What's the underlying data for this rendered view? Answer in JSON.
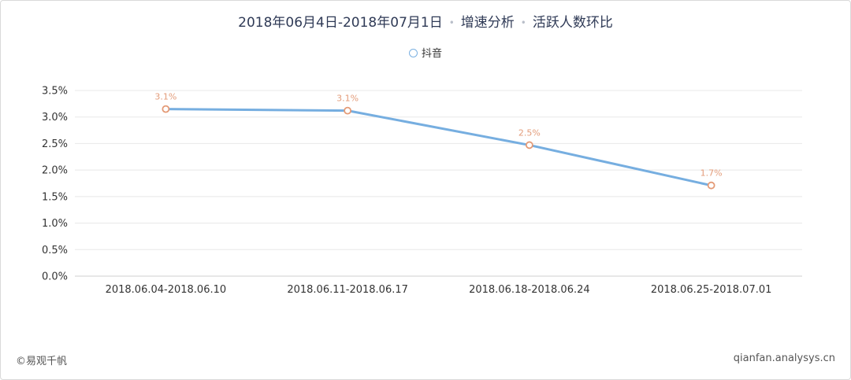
{
  "title": {
    "part1": "2018年06月4日-2018年07月1日",
    "sep": "•",
    "part2": "增速分析",
    "part3": "活跃人数环比"
  },
  "footer": {
    "left": "©易观千帆",
    "right": "qianfan.analysys.cn"
  },
  "colors": {
    "line": "#76aee0",
    "marker": "#e49a76",
    "grid": "#e8e8e8"
  },
  "chart_data": {
    "type": "line",
    "categories": [
      "2018.06.04-2018.06.10",
      "2018.06.11-2018.06.17",
      "2018.06.18-2018.06.24",
      "2018.06.25-2018.07.01"
    ],
    "series": [
      {
        "name": "抖音",
        "values": [
          3.15,
          3.12,
          2.47,
          1.71
        ],
        "labels": [
          "3.1%",
          "3.1%",
          "2.5%",
          "1.7%"
        ]
      }
    ],
    "ylim": [
      0,
      3.5
    ],
    "yticks": [
      "0.0%",
      "0.5%",
      "1.0%",
      "1.5%",
      "2.0%",
      "2.5%",
      "3.0%",
      "3.5%"
    ],
    "grid": true,
    "legend_position": "top-center"
  }
}
